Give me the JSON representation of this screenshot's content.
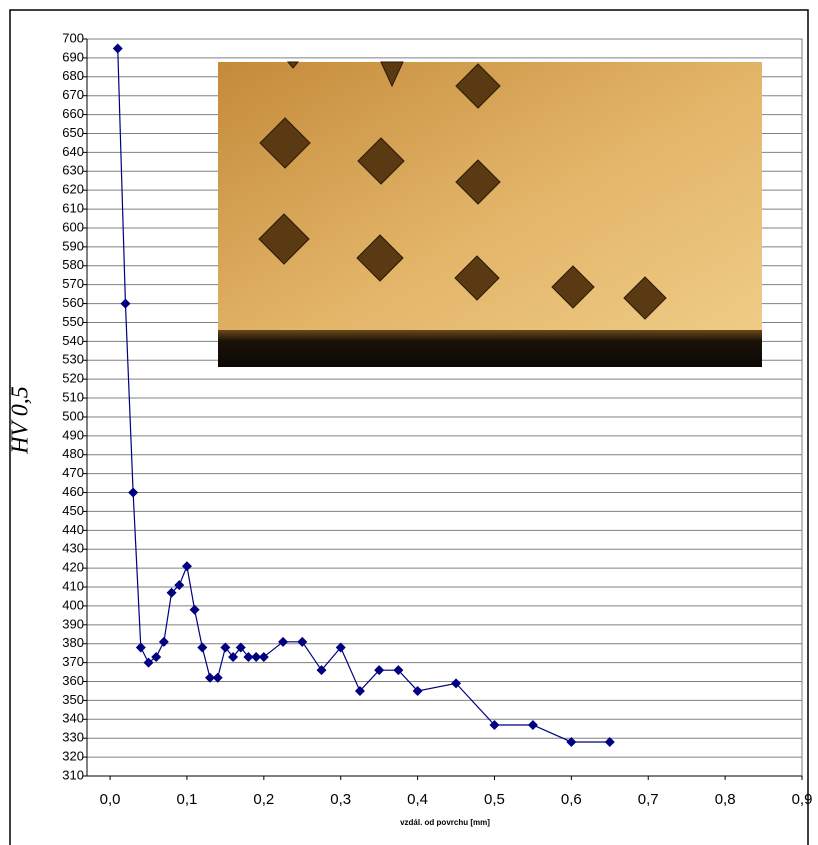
{
  "chart_data": {
    "type": "line",
    "y_label": "HV 0,5",
    "x_label": "vzdál. od povrchu [mm]",
    "x": [
      0.01,
      0.02,
      0.03,
      0.04,
      0.05,
      0.06,
      0.07,
      0.08,
      0.09,
      0.1,
      0.11,
      0.12,
      0.13,
      0.14,
      0.15,
      0.16,
      0.17,
      0.18,
      0.19,
      0.2,
      0.225,
      0.25,
      0.275,
      0.3,
      0.325,
      0.35,
      0.375,
      0.4,
      0.45,
      0.5,
      0.55,
      0.6,
      0.65
    ],
    "series": [
      {
        "color": "#000080",
        "values": [
          695,
          560,
          460,
          378,
          370,
          373,
          381,
          407,
          411,
          421,
          398,
          378,
          362,
          362,
          378,
          373,
          378,
          373,
          373,
          373,
          381,
          381,
          366,
          378,
          355,
          366,
          366,
          355,
          359,
          337,
          337,
          328,
          328
        ]
      }
    ],
    "xlim": [
      -0.03,
      0.9
    ],
    "xticks": [
      {
        "value": 0,
        "label": "0,0"
      },
      {
        "value": 0.1,
        "label": "0,1"
      },
      {
        "value": 0.2,
        "label": "0,2"
      },
      {
        "value": 0.3,
        "label": "0,3"
      },
      {
        "value": 0.4,
        "label": "0,4"
      },
      {
        "value": 0.5,
        "label": "0,5"
      },
      {
        "value": 0.6,
        "label": "0,6"
      },
      {
        "value": 0.7,
        "label": "0,7"
      },
      {
        "value": 0.8,
        "label": "0,8"
      },
      {
        "value": 0.9,
        "label": "0,9"
      }
    ],
    "ylim": [
      310,
      700
    ],
    "yticks": [
      310,
      320,
      330,
      340,
      350,
      360,
      370,
      380,
      390,
      400,
      410,
      420,
      430,
      440,
      450,
      460,
      470,
      480,
      490,
      500,
      510,
      520,
      530,
      540,
      550,
      560,
      570,
      580,
      590,
      600,
      610,
      620,
      630,
      640,
      650,
      660,
      670,
      680,
      690,
      700
    ],
    "grid": true
  }
}
